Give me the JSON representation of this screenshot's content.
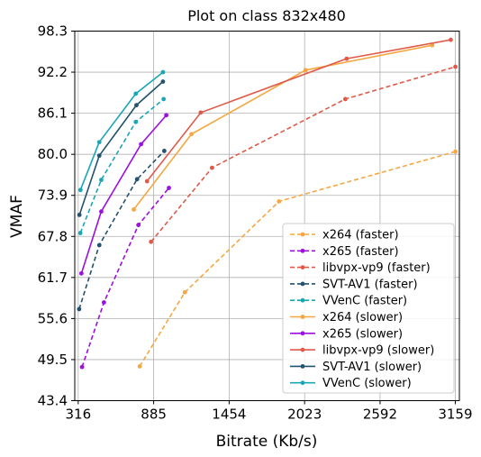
{
  "chart_data": {
    "type": "line",
    "title": "Plot on class 832x480",
    "xlabel": "Bitrate (Kb/s)",
    "ylabel": "VMAF",
    "xlim": [
      290,
      3190
    ],
    "ylim": [
      43.4,
      98.3
    ],
    "xticks": [
      316,
      885,
      1454,
      2023,
      2592,
      3159
    ],
    "yticks": [
      43.4,
      49.5,
      55.6,
      61.7,
      67.8,
      73.9,
      80.0,
      86.1,
      92.2,
      98.3
    ],
    "ytick_labels": [
      "43.4",
      "49.5",
      "55.6",
      "61.7",
      "67.8",
      "73.9",
      "80.0",
      "86.1",
      "92.2",
      "98.3"
    ],
    "grid": true,
    "legend_position": "lower-right",
    "series": [
      {
        "name": "x264 (faster)",
        "color": "#f4a742",
        "dash": true,
        "x": [
          780,
          1120,
          1830,
          3160
        ],
        "y": [
          48.5,
          59.5,
          73.0,
          80.4
        ]
      },
      {
        "name": "x265 (faster)",
        "color": "#9b0fe0",
        "dash": true,
        "x": [
          345,
          510,
          770,
          1000
        ],
        "y": [
          48.4,
          58.0,
          69.5,
          75.0
        ]
      },
      {
        "name": "libvpx-vp9 (faster)",
        "color": "#e05a4a",
        "dash": true,
        "x": [
          865,
          1325,
          2330,
          3160
        ],
        "y": [
          67.0,
          78.0,
          88.2,
          93.0
        ]
      },
      {
        "name": "SVT-AV1 (faster)",
        "color": "#23526e",
        "dash": true,
        "x": [
          323,
          475,
          760,
          965
        ],
        "y": [
          57.0,
          66.5,
          76.3,
          80.5
        ]
      },
      {
        "name": "VVenC (faster)",
        "color": "#19a7b5",
        "dash": true,
        "x": [
          332,
          490,
          750,
          960
        ],
        "y": [
          68.3,
          76.2,
          84.8,
          88.2
        ]
      },
      {
        "name": "x264 (slower)",
        "color": "#f4a742",
        "dash": false,
        "x": [
          735,
          1170,
          2030,
          2985
        ],
        "y": [
          71.8,
          83.0,
          92.5,
          96.2
        ]
      },
      {
        "name": "x265 (slower)",
        "color": "#9b0fe0",
        "dash": false,
        "x": [
          340,
          490,
          790,
          980
        ],
        "y": [
          62.3,
          71.5,
          81.5,
          85.8
        ]
      },
      {
        "name": "libvpx-vp9 (slower)",
        "color": "#e05a4a",
        "dash": false,
        "x": [
          835,
          1240,
          2340,
          3125
        ],
        "y": [
          76.0,
          86.2,
          94.2,
          97.0
        ]
      },
      {
        "name": "SVT-AV1 (slower)",
        "color": "#23526e",
        "dash": false,
        "x": [
          325,
          475,
          755,
          955
        ],
        "y": [
          71.0,
          79.8,
          87.3,
          90.8
        ]
      },
      {
        "name": "VVenC (slower)",
        "color": "#19a7b5",
        "dash": false,
        "x": [
          333,
          475,
          750,
          955
        ],
        "y": [
          74.7,
          81.8,
          89.0,
          92.2
        ]
      }
    ]
  }
}
